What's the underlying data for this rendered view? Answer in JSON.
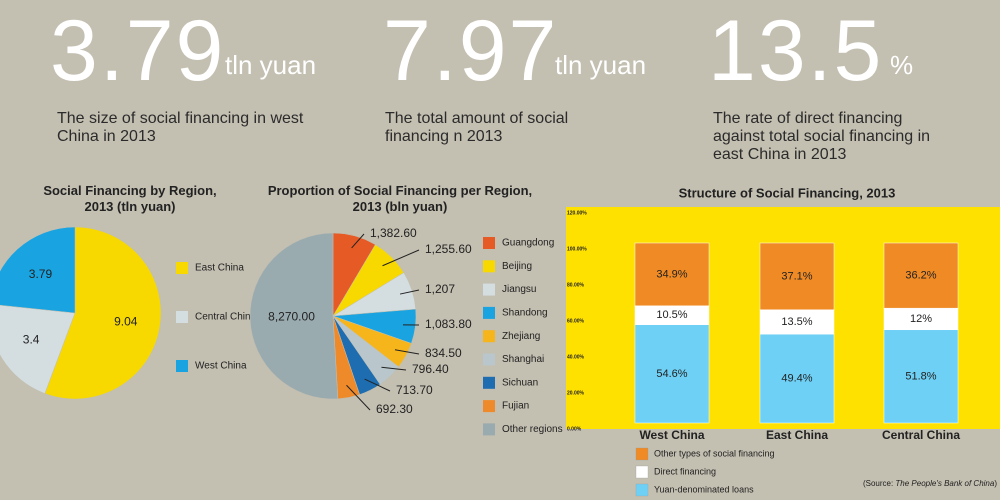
{
  "stats": [
    {
      "number": "3.79",
      "unit": "tln yuan",
      "text": "The size of social financing in west China in 2013"
    },
    {
      "number": "7.97",
      "unit": "tln yuan",
      "text": "The total amount of social financing n 2013"
    },
    {
      "number": "13.5",
      "unit": "%",
      "text": "The rate of direct financing against total social financing in east China in 2013"
    }
  ],
  "chart_data": [
    {
      "type": "pie",
      "title": "Social Financing by Region, 2013 (tln yuan)",
      "categories": [
        "East China",
        "Central China",
        "West China"
      ],
      "values": [
        9.04,
        3.4,
        3.79
      ],
      "colors": [
        "#f7d900",
        "#d4dde0",
        "#19a4e1"
      ]
    },
    {
      "type": "pie",
      "title": "Proportion of Social Financing per Region, 2013 (bln yuan)",
      "categories": [
        "Guangdong",
        "Beijing",
        "Jiangsu",
        "Shandong",
        "Zhejiang",
        "Shanghai",
        "Sichuan",
        "Fujian",
        "Other regions"
      ],
      "values": [
        1382.6,
        1255.6,
        1207,
        1083.8,
        834.5,
        796.4,
        713.7,
        692.3,
        8270.0
      ],
      "value_labels": [
        "1,382.60",
        "1,255.60",
        "1,207",
        "1,083.80",
        "834.50",
        "796.40",
        "713.70",
        "692.30",
        "8,270.00"
      ],
      "colors": [
        "#e65a26",
        "#f7d900",
        "#d4dde0",
        "#19a4e1",
        "#f7b51c",
        "#b9c7cc",
        "#1e6db0",
        "#ee8a2a",
        "#9aabb0"
      ]
    },
    {
      "type": "bar",
      "stacked": true,
      "title": "Structure of Social Financing, 2013",
      "categories": [
        "West China",
        "East China",
        "Central China"
      ],
      "series": [
        {
          "name": "Other types of social financing",
          "color": "#ef8a24",
          "values": [
            34.9,
            37.1,
            36.2
          ],
          "value_labels": [
            "34.9%",
            "37.1%",
            "36.2%"
          ]
        },
        {
          "name": "Direct financing",
          "color": "#ffffff",
          "values": [
            10.5,
            13.5,
            12
          ],
          "value_labels": [
            "10.5%",
            "13.5%",
            "12%"
          ]
        },
        {
          "name": "Yuan-denominated loans",
          "color": "#6fd0f5",
          "values": [
            54.6,
            49.4,
            51.8
          ],
          "value_labels": [
            "54.6%",
            "49.4%",
            "51.8%"
          ]
        }
      ],
      "ylim": [
        0,
        120
      ],
      "yticks": [
        {
          "value": 0,
          "label": "0.00%"
        },
        {
          "value": 20,
          "label": "20.00%"
        },
        {
          "value": 40,
          "label": "40.00%"
        },
        {
          "value": 60,
          "label": "60.00%"
        },
        {
          "value": 80,
          "label": "80.00%"
        },
        {
          "value": 100,
          "label": "100.00%"
        },
        {
          "value": 120,
          "label": "120.00%"
        }
      ],
      "background": "#ffe100",
      "source": [
        "(Source: ",
        "The People's Bank of China",
        ")"
      ]
    }
  ]
}
